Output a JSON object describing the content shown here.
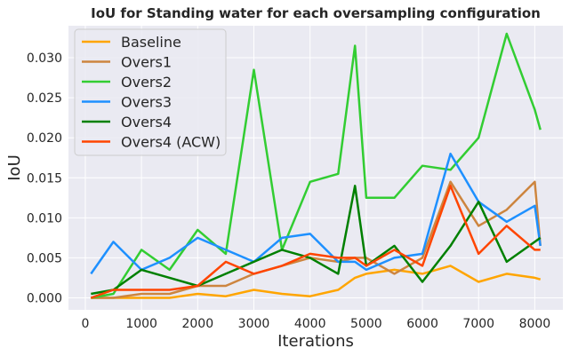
{
  "chart_data": {
    "type": "line",
    "title": "IoU for Standing water for each oversampling configuration",
    "xlabel": "Iterations",
    "ylabel": "IoU",
    "xlim": [
      -300,
      8500
    ],
    "ylim": [
      -0.0015,
      0.034
    ],
    "xticks": [
      0,
      1000,
      2000,
      3000,
      4000,
      5000,
      6000,
      7000,
      8000
    ],
    "yticks": [
      0.0,
      0.005,
      0.01,
      0.015,
      0.02,
      0.025,
      0.03
    ],
    "xtick_labels": [
      "0",
      "1000",
      "2000",
      "3000",
      "4000",
      "5000",
      "6000",
      "7000",
      "8000"
    ],
    "ytick_labels": [
      "0.000",
      "0.005",
      "0.010",
      "0.015",
      "0.020",
      "0.025",
      "0.030"
    ],
    "grid": true,
    "legend_position": "top-left",
    "x": [
      100,
      500,
      1000,
      1500,
      2000,
      2500,
      3000,
      3500,
      4000,
      4500,
      4800,
      5000,
      5500,
      6000,
      6500,
      7000,
      7500,
      8000,
      8100
    ],
    "series": [
      {
        "name": "Baseline",
        "color": "#ffa500",
        "values": [
          0.0,
          0.0,
          0.0,
          0.0,
          0.0005,
          0.0002,
          0.001,
          0.0005,
          0.0002,
          0.001,
          0.0025,
          0.003,
          0.0035,
          0.003,
          0.004,
          0.002,
          0.003,
          0.0025,
          0.0023
        ]
      },
      {
        "name": "Overs1",
        "color": "#cd853f",
        "values": [
          0.0,
          0.0,
          0.0005,
          0.0005,
          0.0015,
          0.0015,
          0.003,
          0.004,
          0.005,
          0.0045,
          0.005,
          0.005,
          0.003,
          0.005,
          0.0145,
          0.009,
          0.011,
          0.0145,
          0.0065
        ]
      },
      {
        "name": "Overs2",
        "color": "#32cd32",
        "values": [
          0.0,
          0.0005,
          0.006,
          0.0035,
          0.0085,
          0.0055,
          0.0285,
          0.006,
          0.0145,
          0.0155,
          0.0315,
          0.0125,
          0.0125,
          0.0165,
          0.016,
          0.02,
          0.033,
          0.0235,
          0.021
        ]
      },
      {
        "name": "Overs3",
        "color": "#1e90ff",
        "values": [
          0.003,
          0.007,
          0.0035,
          0.005,
          0.0075,
          0.006,
          0.0045,
          0.0075,
          0.008,
          0.0045,
          0.0045,
          0.0035,
          0.005,
          0.0055,
          0.018,
          0.012,
          0.0095,
          0.0115,
          0.0065
        ]
      },
      {
        "name": "Overs4",
        "color": "#008000",
        "values": [
          0.0005,
          0.001,
          0.0035,
          0.0025,
          0.0015,
          0.003,
          0.0045,
          0.006,
          0.005,
          0.003,
          0.014,
          0.004,
          0.0065,
          0.002,
          0.0065,
          0.012,
          0.0045,
          0.007,
          0.0075
        ]
      },
      {
        "name": "Overs4 (ACW)",
        "color": "#ff4500",
        "values": [
          0.0,
          0.001,
          0.001,
          0.001,
          0.0015,
          0.0045,
          0.003,
          0.004,
          0.0055,
          0.005,
          0.005,
          0.004,
          0.006,
          0.004,
          0.014,
          0.0055,
          0.009,
          0.006,
          0.006
        ]
      }
    ]
  }
}
